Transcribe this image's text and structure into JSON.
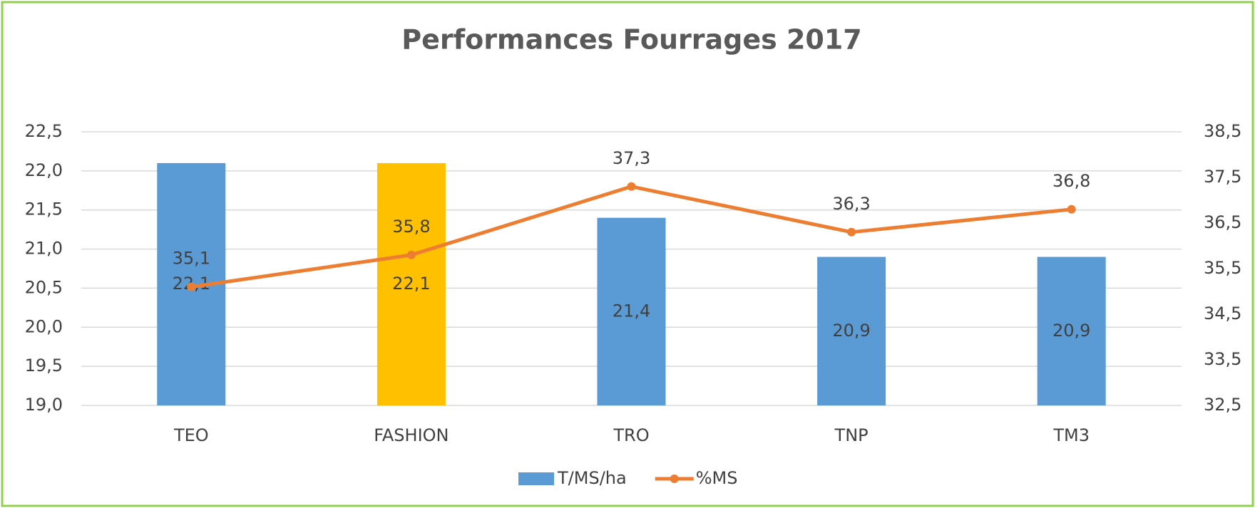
{
  "chart_data": {
    "type": "combo",
    "title": "Performances Fourrages 2017",
    "categories": [
      "TEO",
      "FASHION",
      "TRO",
      "TNP",
      "TM3"
    ],
    "series": [
      {
        "name": "T/MS/ha",
        "type": "bar",
        "color": "#5b9bd5",
        "colors": [
          "#5b9bd5",
          "#ffc000",
          "#5b9bd5",
          "#5b9bd5",
          "#5b9bd5"
        ],
        "values": [
          22.1,
          22.1,
          21.4,
          20.9,
          20.9
        ],
        "value_labels": [
          "22,1",
          "22,1",
          "21,4",
          "20,9",
          "20,9"
        ]
      },
      {
        "name": "%MS",
        "type": "line",
        "axis": "y2",
        "color": "#ed7d31",
        "values": [
          35.1,
          35.8,
          37.3,
          36.3,
          36.8
        ],
        "value_labels": [
          "35,1",
          "35,8",
          "37,3",
          "36,3",
          "36,8"
        ]
      }
    ],
    "ylim": [
      19,
      22.5
    ],
    "yticks": [
      {
        "value": 19,
        "label": "19,0"
      },
      {
        "value": 19.5,
        "label": "19,5"
      },
      {
        "value": 20,
        "label": "20,0"
      },
      {
        "value": 20.5,
        "label": "20,5"
      },
      {
        "value": 21,
        "label": "21,0"
      },
      {
        "value": 21.5,
        "label": "21,5"
      },
      {
        "value": 22,
        "label": "22,0"
      },
      {
        "value": 22.5,
        "label": "22,5"
      }
    ],
    "y2lim": [
      32.5,
      38.5
    ],
    "y2ticks": [
      {
        "value": 32.5,
        "label": "32,5"
      },
      {
        "value": 33.5,
        "label": "33,5"
      },
      {
        "value": 34.5,
        "label": "34,5"
      },
      {
        "value": 35.5,
        "label": "35,5"
      },
      {
        "value": 36.5,
        "label": "36,5"
      },
      {
        "value": 37.5,
        "label": "37,5"
      },
      {
        "value": 38.5,
        "label": "38,5"
      }
    ],
    "grid": true,
    "legend": "bottom"
  }
}
